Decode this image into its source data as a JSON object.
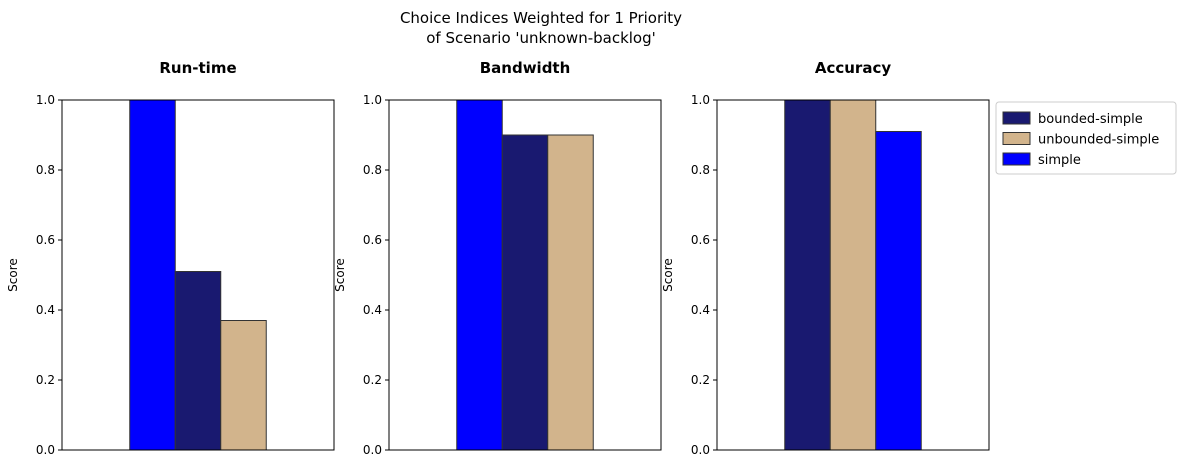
{
  "figure": {
    "title_line1": "Choice Indices Weighted for 1 Priority",
    "title_line2": "of Scenario 'unknown-backlog'"
  },
  "colors": {
    "bounded-simple": "#191970",
    "unbounded-simple": "#d2b48c",
    "simple": "#0000ff"
  },
  "legend": {
    "placement": "right of last panel, top",
    "entries": [
      "bounded-simple",
      "unbounded-simple",
      "simple"
    ]
  },
  "chart_data": [
    {
      "type": "bar",
      "title": "Run-time",
      "ylabel": "Score",
      "ylim": [
        0,
        1
      ],
      "yticks": [
        "0.0",
        "0.2",
        "0.4",
        "0.6",
        "0.8",
        "1.0"
      ],
      "xticks": false,
      "grid": false,
      "bars": [
        {
          "series": "simple",
          "value": 1.0
        },
        {
          "series": "bounded-simple",
          "value": 0.51
        },
        {
          "series": "unbounded-simple",
          "value": 0.37
        }
      ]
    },
    {
      "type": "bar",
      "title": "Bandwidth",
      "ylabel": "Score",
      "ylim": [
        0,
        1
      ],
      "yticks": [
        "0.0",
        "0.2",
        "0.4",
        "0.6",
        "0.8",
        "1.0"
      ],
      "xticks": false,
      "grid": false,
      "bars": [
        {
          "series": "simple",
          "value": 1.0
        },
        {
          "series": "bounded-simple",
          "value": 0.9
        },
        {
          "series": "unbounded-simple",
          "value": 0.9
        }
      ]
    },
    {
      "type": "bar",
      "title": "Accuracy",
      "ylabel": "Score",
      "ylim": [
        0,
        1
      ],
      "yticks": [
        "0.0",
        "0.2",
        "0.4",
        "0.6",
        "0.8",
        "1.0"
      ],
      "xticks": false,
      "grid": false,
      "bars": [
        {
          "series": "bounded-simple",
          "value": 1.0
        },
        {
          "series": "unbounded-simple",
          "value": 1.0
        },
        {
          "series": "simple",
          "value": 0.91
        }
      ]
    }
  ]
}
